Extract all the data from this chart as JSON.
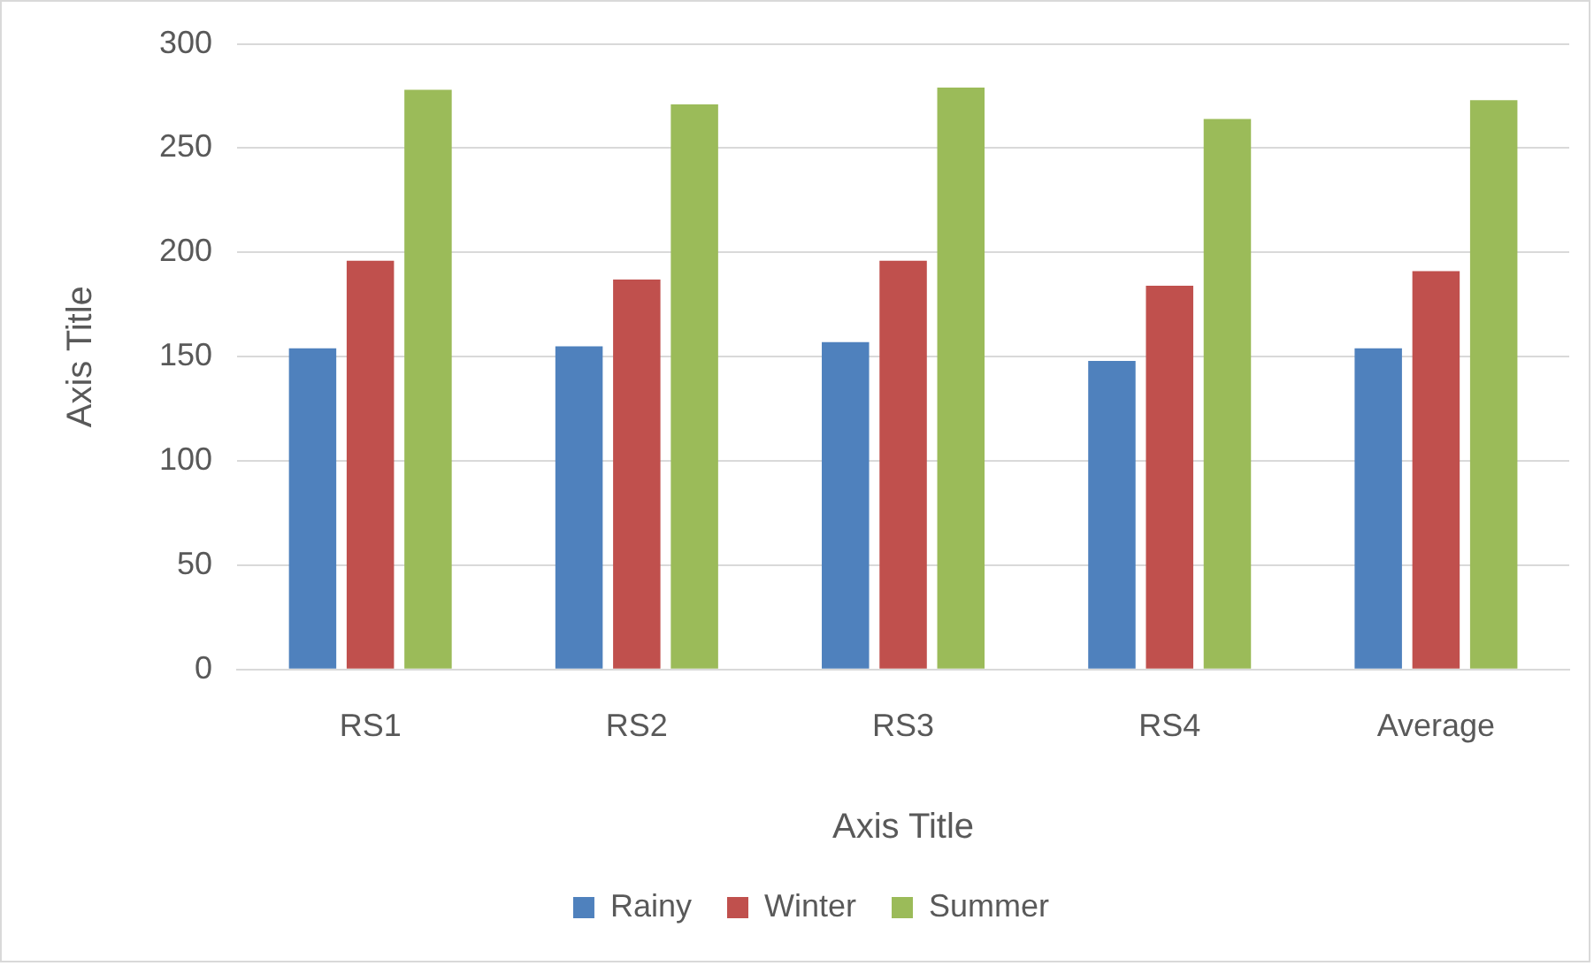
{
  "chart_data": {
    "type": "bar",
    "xlabel": "Axis Title",
    "ylabel": "Axis Title",
    "categories": [
      "RS1",
      "RS2",
      "RS3",
      "RS4",
      "Average"
    ],
    "series": [
      {
        "name": "Rainy",
        "color": "#4f81bd",
        "values": [
          154,
          155,
          157,
          148,
          154
        ]
      },
      {
        "name": "Winter",
        "color": "#c0504d",
        "values": [
          196,
          187,
          196,
          184,
          191
        ]
      },
      {
        "name": "Summer",
        "color": "#9bbb59",
        "values": [
          278,
          271,
          279,
          264,
          273
        ]
      }
    ],
    "ylim": [
      0,
      300
    ],
    "yticks": [
      0,
      50,
      100,
      150,
      200,
      250,
      300
    ],
    "grid": "y",
    "legend": "bottom"
  }
}
